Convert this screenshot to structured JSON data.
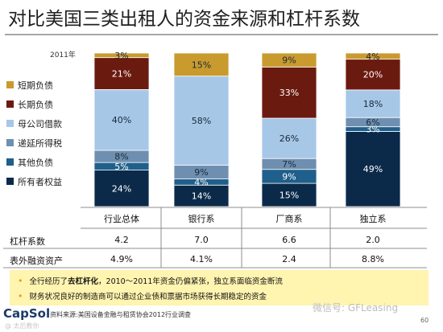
{
  "title": "对比美国三类出租人的资金来源和杠杆系数",
  "year_label": "2011年",
  "chart_data": {
    "type": "bar",
    "stacked": true,
    "categories": [
      "行业总体",
      "银行系",
      "厂商系",
      "独立系"
    ],
    "ylim": [
      0,
      100
    ],
    "legend_position": "left",
    "series": [
      {
        "name": "所有者权益",
        "values": [
          24,
          14,
          15,
          49
        ],
        "labels": [
          "24%",
          "14%",
          "15%",
          "49%"
        ],
        "color": "#0b2a4a"
      },
      {
        "name": "其他负债",
        "values": [
          5,
          4,
          9,
          3
        ],
        "labels": [
          "5%",
          "4%",
          "9%",
          "3%"
        ],
        "color": "#1f5f8b"
      },
      {
        "name": "递延所得税",
        "values": [
          8,
          9,
          7,
          6
        ],
        "labels": [
          "8%",
          "9%",
          "7%",
          "6%"
        ],
        "color": "#6f8fb0"
      },
      {
        "name": "母公司借款",
        "values": [
          40,
          58,
          26,
          18
        ],
        "labels": [
          "40%",
          "58%",
          "26%",
          "18%"
        ],
        "color": "#a7c7e7"
      },
      {
        "name": "长期负债",
        "values": [
          21,
          0,
          33,
          20
        ],
        "labels": [
          "21%",
          "",
          "33%",
          "20%"
        ],
        "color": "#6b1a10"
      },
      {
        "name": "短期负债",
        "values": [
          3,
          15,
          9,
          4
        ],
        "labels": [
          "3%",
          "15%",
          "9%",
          "4%"
        ],
        "color": "#c99a2e"
      }
    ]
  },
  "legend": [
    "短期负债",
    "长期负债",
    "母公司借款",
    "递延所得税",
    "其他负债",
    "所有者权益"
  ],
  "table": {
    "rows": [
      {
        "label": "杠杆系数",
        "values": [
          "4.2",
          "7.0",
          "6.6",
          "2.0"
        ]
      },
      {
        "label": "表外融资资产",
        "values": [
          "4.9%",
          "4.1%",
          "2.4",
          "8.8%"
        ]
      }
    ]
  },
  "notes": [
    {
      "pre": "全行经历了",
      "bold": "去杠杆化",
      "post": "，2010～2011年资金仍偏紧张，独立系面临资金断流"
    },
    {
      "pre": "财务状况良好的制造商可以通过企业债和票据市场获得长期稳定的资金",
      "bold": "",
      "post": ""
    }
  ],
  "logo": "CapSol",
  "source": "资料来源:美国设备金融与租赁协会2012行业调查",
  "watermark": "微信号: GFLeasing",
  "watermark2": "@ 太后教你",
  "page_number": "60"
}
